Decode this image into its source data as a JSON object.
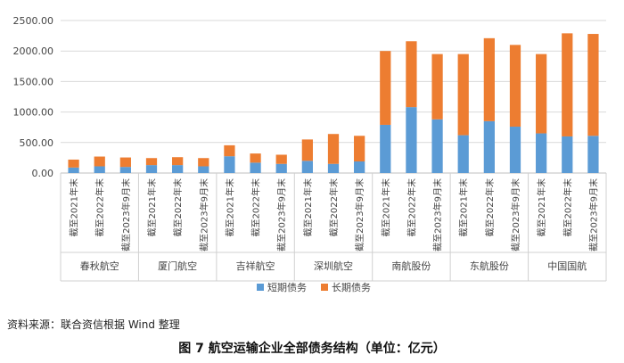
{
  "chart_data": {
    "type": "bar",
    "stacked": true,
    "ylim": [
      0,
      2500
    ],
    "ytick_labels": [
      "0.00",
      "500.00",
      "1000.00",
      "1500.00",
      "2000.00",
      "2500.00"
    ],
    "ytick_values": [
      0,
      500,
      1000,
      1500,
      2000,
      2500
    ],
    "groups": [
      {
        "name": "春秋航空",
        "categories": [
          "截至2021年末",
          "截至2022年末",
          "截至2023年9月末"
        ]
      },
      {
        "name": "厦门航空",
        "categories": [
          "截至2021年末",
          "截至2022年末",
          "截至2023年9月末"
        ]
      },
      {
        "name": "吉祥航空",
        "categories": [
          "截至2021年末",
          "截至2022年末",
          "截至2023年9月末"
        ]
      },
      {
        "name": "深圳航空",
        "categories": [
          "截至2021年末",
          "截至2022年末",
          "截至2023年9月末"
        ]
      },
      {
        "name": "南航股份",
        "categories": [
          "截至2021年末",
          "截至2022年末",
          "截至2023年9月末"
        ]
      },
      {
        "name": "东航股份",
        "categories": [
          "截至2021年末",
          "截至2022年末",
          "截至2023年9月末"
        ]
      },
      {
        "name": "中国国航",
        "categories": [
          "截至2021年末",
          "截至2022年末",
          "截至2023年9月末"
        ]
      }
    ],
    "series": [
      {
        "name": "短期债务",
        "color": "#5B9BD5",
        "values": [
          90,
          110,
          100,
          130,
          130,
          110,
          275,
          170,
          150,
          200,
          150,
          190,
          790,
          1080,
          880,
          620,
          850,
          760,
          650,
          600,
          610
        ]
      },
      {
        "name": "长期债务",
        "color": "#ED7D31",
        "values": [
          130,
          160,
          155,
          115,
          130,
          135,
          180,
          150,
          150,
          350,
          490,
          420,
          1210,
          1080,
          1070,
          1330,
          1360,
          1340,
          1300,
          1690,
          1670
        ]
      }
    ],
    "grid": true,
    "legend": "bottom"
  },
  "source_text": "资料来源：联合资信根据 Wind 整理",
  "figure_caption": "图 7    航空运输企业全部债务结构（单位：亿元）"
}
